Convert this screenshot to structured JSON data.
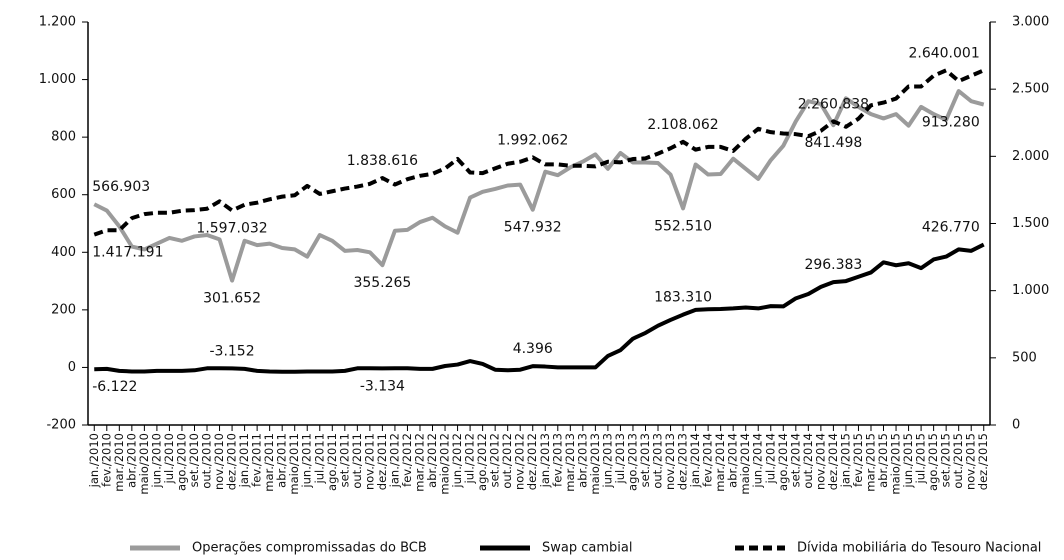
{
  "chart_data": {
    "type": "line",
    "categories": [
      "jan./2010",
      "fev./2010",
      "mar./2010",
      "abr./2010",
      "maio/2010",
      "jun./2010",
      "jul./2010",
      "ago./2010",
      "set./2010",
      "out./2010",
      "nov./2010",
      "dez./2010",
      "jan./2011",
      "fev./2011",
      "mar./2011",
      "abr./2011",
      "maio/2011",
      "jun./2011",
      "jul./2011",
      "ago./2011",
      "set./2011",
      "out./2011",
      "nov./2011",
      "dez./2011",
      "jan./2012",
      "fev./2012",
      "mar./2012",
      "abr./2012",
      "maio/2012",
      "jun./2012",
      "jul./2012",
      "ago./2012",
      "set./2012",
      "out./2012",
      "nov./2012",
      "dez./2012",
      "jan./2013",
      "fev./2013",
      "mar./2013",
      "abr./2013",
      "maio/2013",
      "jun./2013",
      "jul./2013",
      "ago./2013",
      "set./2013",
      "out./2013",
      "nov./2013",
      "dez./2013",
      "jan./2014",
      "fev./2014",
      "mar./2014",
      "abr./2014",
      "maio/2014",
      "jun./2014",
      "jul./2014",
      "ago./2014",
      "set./2014",
      "out./2014",
      "nov./2014",
      "dez./2014",
      "jan./2015",
      "fev./2015",
      "mar./2015",
      "abr./2015",
      "maio/2015",
      "jun./2015",
      "jul./2015",
      "ago./2015",
      "set./2015",
      "out./2015",
      "nov./2015",
      "dez./2015"
    ],
    "series": [
      {
        "name": "Operações compromissadas do BCB",
        "color": "#9b9b9b",
        "dash": false,
        "values": [
          566.903,
          545,
          490,
          420,
          410,
          430,
          450,
          440,
          455,
          460,
          445,
          301.652,
          440,
          425,
          430,
          415,
          410,
          385,
          460,
          440,
          405,
          408,
          400,
          355.265,
          475,
          478,
          505,
          520,
          490,
          468,
          590,
          610,
          620,
          632,
          635,
          547.932,
          680,
          668,
          695,
          715,
          740,
          690,
          745,
          712,
          712,
          710,
          670,
          552.51,
          705,
          670,
          672,
          725,
          690,
          655,
          720,
          770,
          855,
          925,
          915,
          841.498,
          935,
          905,
          880,
          865,
          880,
          840,
          905,
          880,
          860,
          960,
          925,
          913.28
        ],
        "value_labels": [
          "566.903",
          null,
          null,
          null,
          null,
          null,
          null,
          null,
          null,
          null,
          null,
          "301.652",
          null,
          null,
          null,
          null,
          null,
          null,
          null,
          null,
          null,
          null,
          null,
          "355.265",
          null,
          null,
          null,
          null,
          null,
          null,
          null,
          null,
          null,
          null,
          null,
          "547.932",
          null,
          null,
          null,
          null,
          null,
          null,
          null,
          null,
          null,
          null,
          null,
          "552.510",
          null,
          null,
          null,
          null,
          null,
          null,
          null,
          null,
          null,
          null,
          null,
          "841.498",
          null,
          null,
          null,
          null,
          null,
          null,
          null,
          null,
          null,
          null,
          null,
          "913.280"
        ]
      },
      {
        "name": "Swap cambial",
        "color": "#000000",
        "dash": false,
        "values": [
          -6.122,
          -5,
          -12,
          -14,
          -14,
          -12,
          -12,
          -12,
          -10,
          -3,
          -3,
          -3.152,
          -5,
          -12,
          -14,
          -15,
          -15,
          -14,
          -14,
          -14,
          -12,
          -3,
          -3,
          -3.134,
          -3,
          -3,
          -5,
          -5,
          5,
          10,
          22,
          12,
          -8,
          -10,
          -8,
          4.396,
          3,
          0,
          0,
          0,
          0,
          40,
          60,
          100,
          120,
          145,
          165,
          183.31,
          200,
          202,
          203,
          205,
          208,
          205,
          213,
          212,
          240,
          255,
          280,
          296.383,
          300,
          315,
          330,
          365,
          355,
          362,
          345,
          375,
          385,
          410,
          405,
          426.77
        ],
        "value_labels": [
          "-6.122",
          null,
          null,
          null,
          null,
          null,
          null,
          null,
          null,
          null,
          null,
          "-3.152",
          null,
          null,
          null,
          null,
          null,
          null,
          null,
          null,
          null,
          null,
          null,
          "-3.134",
          null,
          null,
          null,
          null,
          null,
          null,
          null,
          null,
          null,
          null,
          null,
          "4.396",
          null,
          null,
          null,
          null,
          null,
          null,
          null,
          null,
          null,
          null,
          null,
          "183.310",
          null,
          null,
          null,
          null,
          null,
          null,
          null,
          null,
          null,
          null,
          null,
          "296.383",
          null,
          null,
          null,
          null,
          null,
          null,
          null,
          null,
          null,
          null,
          null,
          "426.770"
        ]
      },
      {
        "name": "Dívida mobiliária do Tesouro Nacional",
        "color": "#000000",
        "dash": true,
        "axis": "y2",
        "values": [
          1417.191,
          1450,
          1450,
          1540,
          1570,
          1580,
          1580,
          1595,
          1600,
          1610,
          1665,
          1597.032,
          1640,
          1655,
          1680,
          1700,
          1710,
          1780,
          1720,
          1740,
          1760,
          1775,
          1795,
          1838.616,
          1790,
          1830,
          1855,
          1870,
          1910,
          1980,
          1880,
          1875,
          1910,
          1945,
          1960,
          1992.062,
          1940,
          1940,
          1930,
          1930,
          1925,
          1960,
          1955,
          1980,
          1985,
          2020,
          2060,
          2108.062,
          2050,
          2070,
          2070,
          2040,
          2130,
          2205,
          2180,
          2170,
          2165,
          2150,
          2190,
          2260.838,
          2220,
          2280,
          2380,
          2400,
          2430,
          2520,
          2520,
          2600,
          2640,
          2560,
          2600,
          2640.001
        ],
        "value_labels": [
          "1.417.191",
          null,
          null,
          null,
          null,
          null,
          null,
          null,
          null,
          null,
          null,
          "1.597.032",
          null,
          null,
          null,
          null,
          null,
          null,
          null,
          null,
          null,
          null,
          null,
          "1.838.616",
          null,
          null,
          null,
          null,
          null,
          null,
          null,
          null,
          null,
          null,
          null,
          "1.992.062",
          null,
          null,
          null,
          null,
          null,
          null,
          null,
          null,
          null,
          null,
          null,
          "2.108.062",
          null,
          null,
          null,
          null,
          null,
          null,
          null,
          null,
          null,
          null,
          null,
          "2.260.838",
          null,
          null,
          null,
          null,
          null,
          null,
          null,
          null,
          null,
          null,
          null,
          "2.640.001"
        ]
      }
    ],
    "ylim": [
      -200,
      1200
    ],
    "yticks": [
      -200,
      0,
      200,
      400,
      600,
      800,
      {
        "value": 1000,
        "label": "1.000"
      },
      {
        "value": 1200,
        "label": "1.200"
      }
    ],
    "y2lim": [
      0,
      3000
    ],
    "y2ticks": [
      0,
      500,
      {
        "value": 1000,
        "label": "1.000"
      },
      {
        "value": 1500,
        "label": "1.500"
      },
      {
        "value": 2000,
        "label": "2.000"
      },
      {
        "value": 2500,
        "label": "2.500"
      },
      {
        "value": 3000,
        "label": "3.000"
      }
    ],
    "grid": false,
    "legend": "bottom"
  }
}
